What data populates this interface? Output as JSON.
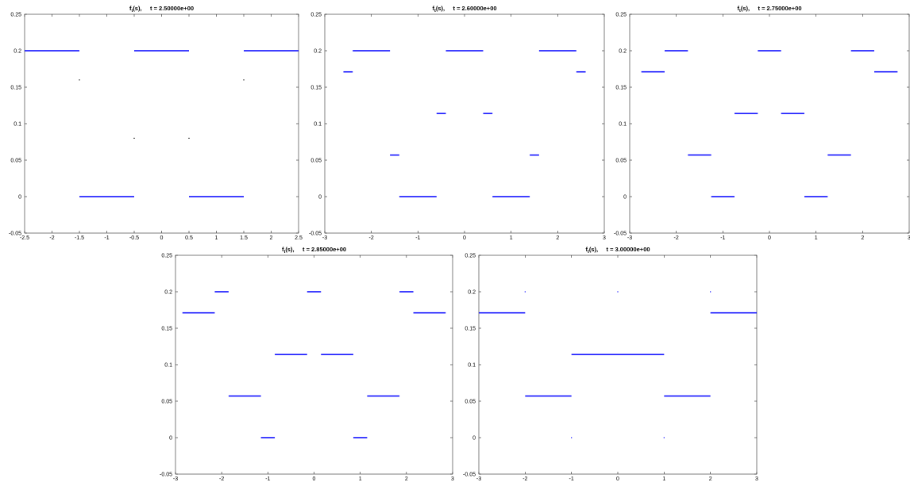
{
  "figure": {
    "panels_count": 5
  },
  "chart_data": [
    {
      "type": "line",
      "title_main": "f",
      "title_sub": "t",
      "title_rest": "(s),     t = 2.50000e+00",
      "xlim": [
        -2.5,
        2.5
      ],
      "ylim": [
        -0.05,
        0.25
      ],
      "xticks": [
        -2.5,
        -2,
        -1.5,
        -1,
        -0.5,
        0,
        0.5,
        1,
        1.5,
        2,
        2.5
      ],
      "yticks": [
        -0.05,
        0,
        0.05,
        0.1,
        0.15,
        0.2,
        0.25
      ],
      "xtick_labels": [
        "-2.5",
        "-2",
        "-1.5",
        "-1",
        "-0.5",
        "0",
        "0.5",
        "1",
        "1.5",
        "2",
        "2.5"
      ],
      "ytick_labels": [
        "-0.05",
        "0",
        "0.05",
        "0.1",
        "0.15",
        "0.2",
        "0.25"
      ],
      "grid": false,
      "series_color": "#0000ff",
      "segments": [
        {
          "x0": -2.5,
          "x1": -1.5,
          "y": 0.2
        },
        {
          "x0": -1.5,
          "x1": -0.5,
          "y": 0.0
        },
        {
          "x0": -0.5,
          "x1": 0.5,
          "y": 0.2
        },
        {
          "x0": 0.5,
          "x1": 1.5,
          "y": 0.0
        },
        {
          "x0": 1.5,
          "x1": 2.5,
          "y": 0.2
        }
      ],
      "points": [
        {
          "x": -1.5,
          "y": 0.16,
          "color": "#000000"
        },
        {
          "x": 1.5,
          "y": 0.16,
          "color": "#000000"
        },
        {
          "x": -0.5,
          "y": 0.08,
          "color": "#000000"
        },
        {
          "x": 0.5,
          "y": 0.08,
          "color": "#000000"
        }
      ]
    },
    {
      "type": "line",
      "title_main": "f",
      "title_sub": "t",
      "title_rest": "(s),     t = 2.60000e+00",
      "xlim": [
        -3,
        3
      ],
      "ylim": [
        -0.05,
        0.25
      ],
      "xticks": [
        -3,
        -2,
        -1,
        0,
        1,
        2,
        3
      ],
      "yticks": [
        -0.05,
        0,
        0.05,
        0.1,
        0.15,
        0.2,
        0.25
      ],
      "xtick_labels": [
        "-3",
        "-2",
        "-1",
        "0",
        "1",
        "2",
        "3"
      ],
      "ytick_labels": [
        "-0.05",
        "0",
        "0.05",
        "0.1",
        "0.15",
        "0.2",
        "0.25"
      ],
      "grid": false,
      "series_color": "#0000ff",
      "segments": [
        {
          "x0": -2.6,
          "x1": -2.4,
          "y": 0.171
        },
        {
          "x0": -2.4,
          "x1": -1.6,
          "y": 0.2
        },
        {
          "x0": -1.6,
          "x1": -1.4,
          "y": 0.057
        },
        {
          "x0": -1.4,
          "x1": -0.6,
          "y": 0.0
        },
        {
          "x0": -0.6,
          "x1": -0.4,
          "y": 0.114
        },
        {
          "x0": -0.4,
          "x1": 0.4,
          "y": 0.2
        },
        {
          "x0": 0.4,
          "x1": 0.6,
          "y": 0.114
        },
        {
          "x0": 0.6,
          "x1": 1.4,
          "y": 0.0
        },
        {
          "x0": 1.4,
          "x1": 1.6,
          "y": 0.057
        },
        {
          "x0": 1.6,
          "x1": 2.4,
          "y": 0.2
        },
        {
          "x0": 2.4,
          "x1": 2.6,
          "y": 0.171
        }
      ],
      "points": []
    },
    {
      "type": "line",
      "title_main": "f",
      "title_sub": "t",
      "title_rest": "(s),     t = 2.75000e+00",
      "xlim": [
        -3,
        3
      ],
      "ylim": [
        -0.05,
        0.25
      ],
      "xticks": [
        -3,
        -2,
        -1,
        0,
        1,
        2,
        3
      ],
      "yticks": [
        -0.05,
        0,
        0.05,
        0.1,
        0.15,
        0.2,
        0.25
      ],
      "xtick_labels": [
        "-3",
        "-2",
        "-1",
        "0",
        "1",
        "2",
        "3"
      ],
      "ytick_labels": [
        "-0.05",
        "0",
        "0.05",
        "0.1",
        "0.15",
        "0.2",
        "0.25"
      ],
      "grid": false,
      "series_color": "#0000ff",
      "segments": [
        {
          "x0": -2.75,
          "x1": -2.25,
          "y": 0.171
        },
        {
          "x0": -2.25,
          "x1": -1.75,
          "y": 0.2
        },
        {
          "x0": -1.75,
          "x1": -1.25,
          "y": 0.057
        },
        {
          "x0": -1.25,
          "x1": -0.75,
          "y": 0.0
        },
        {
          "x0": -0.75,
          "x1": -0.25,
          "y": 0.114
        },
        {
          "x0": -0.25,
          "x1": 0.25,
          "y": 0.2
        },
        {
          "x0": 0.25,
          "x1": 0.75,
          "y": 0.114
        },
        {
          "x0": 0.75,
          "x1": 1.25,
          "y": 0.0
        },
        {
          "x0": 1.25,
          "x1": 1.75,
          "y": 0.057
        },
        {
          "x0": 1.75,
          "x1": 2.25,
          "y": 0.2
        },
        {
          "x0": 2.25,
          "x1": 2.75,
          "y": 0.171
        }
      ],
      "points": []
    },
    {
      "type": "line",
      "title_main": "f",
      "title_sub": "t",
      "title_rest": "(s),     t = 2.85000e+00",
      "xlim": [
        -3,
        3
      ],
      "ylim": [
        -0.05,
        0.25
      ],
      "xticks": [
        -3,
        -2,
        -1,
        0,
        1,
        2,
        3
      ],
      "yticks": [
        -0.05,
        0,
        0.05,
        0.1,
        0.15,
        0.2,
        0.25
      ],
      "xtick_labels": [
        "-3",
        "-2",
        "-1",
        "0",
        "1",
        "2",
        "3"
      ],
      "ytick_labels": [
        "-0.05",
        "0",
        "0.05",
        "0.1",
        "0.15",
        "0.2",
        "0.25"
      ],
      "grid": false,
      "series_color": "#0000ff",
      "segments": [
        {
          "x0": -2.85,
          "x1": -2.15,
          "y": 0.171
        },
        {
          "x0": -2.15,
          "x1": -1.85,
          "y": 0.2
        },
        {
          "x0": -1.85,
          "x1": -1.15,
          "y": 0.057
        },
        {
          "x0": -1.15,
          "x1": -0.85,
          "y": 0.0
        },
        {
          "x0": -0.85,
          "x1": -0.15,
          "y": 0.114
        },
        {
          "x0": -0.15,
          "x1": 0.15,
          "y": 0.2
        },
        {
          "x0": 0.15,
          "x1": 0.85,
          "y": 0.114
        },
        {
          "x0": 0.85,
          "x1": 1.15,
          "y": 0.0
        },
        {
          "x0": 1.15,
          "x1": 1.85,
          "y": 0.057
        },
        {
          "x0": 1.85,
          "x1": 2.15,
          "y": 0.2
        },
        {
          "x0": 2.15,
          "x1": 2.85,
          "y": 0.171
        }
      ],
      "points": []
    },
    {
      "type": "line",
      "title_main": "f",
      "title_sub": "t",
      "title_rest": "(s),     t = 3.00000e+00",
      "xlim": [
        -3,
        3
      ],
      "ylim": [
        -0.05,
        0.25
      ],
      "xticks": [
        -3,
        -2,
        -1,
        0,
        1,
        2,
        3
      ],
      "yticks": [
        -0.05,
        0,
        0.05,
        0.1,
        0.15,
        0.2,
        0.25
      ],
      "xtick_labels": [
        "-3",
        "-2",
        "-1",
        "0",
        "1",
        "2",
        "3"
      ],
      "ytick_labels": [
        "-0.05",
        "0",
        "0.05",
        "0.1",
        "0.15",
        "0.2",
        "0.25"
      ],
      "grid": false,
      "series_color": "#0000ff",
      "segments": [
        {
          "x0": -3,
          "x1": -2,
          "y": 0.171
        },
        {
          "x0": -2,
          "x1": -1,
          "y": 0.057
        },
        {
          "x0": -1,
          "x1": 1,
          "y": 0.114
        },
        {
          "x0": 1,
          "x1": 2,
          "y": 0.057
        },
        {
          "x0": 2,
          "x1": 3,
          "y": 0.171
        }
      ],
      "points": [
        {
          "x": -2,
          "y": 0.2,
          "color": "#0000ff"
        },
        {
          "x": 0,
          "y": 0.2,
          "color": "#0000ff"
        },
        {
          "x": 2,
          "y": 0.2,
          "color": "#0000ff"
        },
        {
          "x": -1,
          "y": 0.0,
          "color": "#0000ff"
        },
        {
          "x": 1,
          "y": 0.0,
          "color": "#0000ff"
        }
      ]
    }
  ]
}
